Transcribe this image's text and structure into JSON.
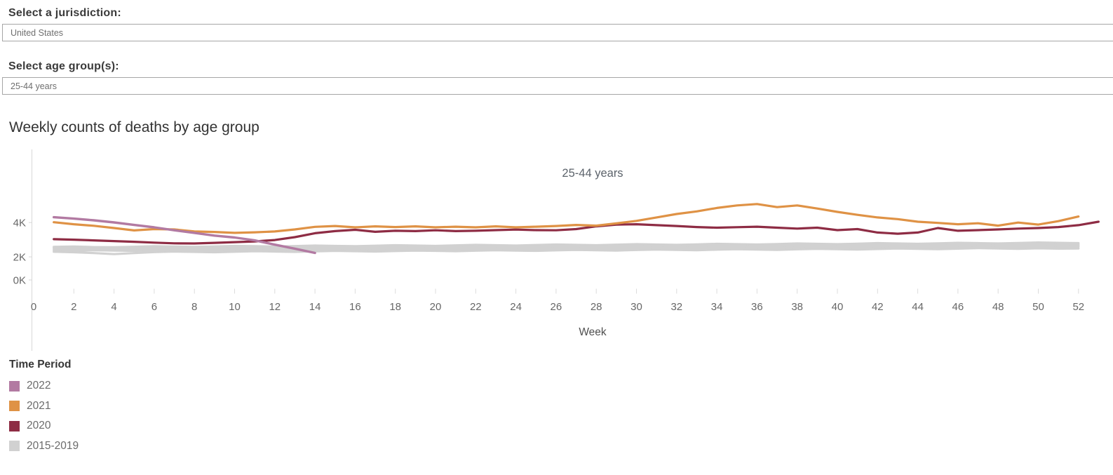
{
  "filters": {
    "jurisdiction": {
      "label": "Select a jurisdiction:",
      "value": "United States"
    },
    "age_group": {
      "label": "Select age group(s):",
      "value": "25-44 years"
    }
  },
  "chart": {
    "title": "Weekly counts of deaths by age group",
    "annotation": "25-44 years",
    "x_axis_title": "Week"
  },
  "chart_data": {
    "type": "line",
    "title": "Weekly counts of deaths by age group",
    "annotation": "25-44 years",
    "xlabel": "Week",
    "ylabel": "",
    "xlim": [
      0,
      54
    ],
    "ylim": [
      0,
      8800
    ],
    "grid": false,
    "x_axis": {
      "ticks": [
        0,
        2,
        4,
        6,
        8,
        10,
        12,
        14,
        16,
        18,
        20,
        22,
        24,
        26,
        28,
        30,
        32,
        34,
        36,
        38,
        40,
        42,
        44,
        46,
        48,
        50,
        52
      ]
    },
    "y_axis": {
      "ticks": [
        {
          "label": "0K",
          "value": 0
        },
        {
          "label": "2K",
          "value": 2000
        },
        {
          "label": "4K",
          "value": 4000
        }
      ]
    },
    "legend": {
      "title": "Time Period",
      "position": "bottom-left",
      "entries": [
        {
          "label": "2022",
          "color": "#b27aa2"
        },
        {
          "label": "2021",
          "color": "#df9245"
        },
        {
          "label": "2020",
          "color": "#8e2c44"
        },
        {
          "label": "2015-2019",
          "color": "#d1d1d1"
        }
      ]
    },
    "series": [
      {
        "name": "2015-2019",
        "color": "#d1d1d1",
        "width": 3.2,
        "start_week": 1,
        "lines": [
          [
            2300,
            2270,
            2220,
            2160,
            2220,
            2280,
            2310,
            2290,
            2270,
            2300,
            2330,
            2310,
            2290,
            2320,
            2350,
            2330,
            2310,
            2340,
            2370,
            2350,
            2330,
            2360,
            2390,
            2370,
            2350,
            2380,
            2410,
            2390,
            2370,
            2400,
            2430,
            2410,
            2390,
            2420,
            2450,
            2430,
            2410,
            2440,
            2470,
            2450,
            2430,
            2460,
            2490,
            2470,
            2450,
            2480,
            2510,
            2490,
            2470,
            2500,
            2480,
            2490
          ],
          [
            2380,
            2360,
            2390,
            2370,
            2350,
            2380,
            2410,
            2390,
            2370,
            2400,
            2430,
            2410,
            2390,
            2420,
            2450,
            2430,
            2410,
            2440,
            2470,
            2450,
            2430,
            2460,
            2490,
            2470,
            2450,
            2480,
            2510,
            2490,
            2470,
            2500,
            2530,
            2510,
            2490,
            2520,
            2550,
            2530,
            2510,
            2540,
            2570,
            2550,
            2530,
            2560,
            2590,
            2570,
            2550,
            2580,
            2610,
            2590,
            2570,
            2600,
            2580,
            2590
          ],
          [
            2450,
            2430,
            2460,
            2440,
            2420,
            2450,
            2480,
            2460,
            2440,
            2470,
            2500,
            2480,
            2460,
            2490,
            2520,
            2500,
            2480,
            2510,
            2540,
            2520,
            2500,
            2530,
            2560,
            2540,
            2520,
            2550,
            2580,
            2560,
            2540,
            2570,
            2600,
            2580,
            2560,
            2590,
            2620,
            2600,
            2580,
            2610,
            2640,
            2620,
            2600,
            2630,
            2660,
            2640,
            2620,
            2650,
            2680,
            2660,
            2640,
            2670,
            2650,
            2660
          ],
          [
            2520,
            2490,
            2510,
            2540,
            2520,
            2500,
            2530,
            2560,
            2540,
            2520,
            2550,
            2580,
            2560,
            2540,
            2570,
            2600,
            2580,
            2560,
            2590,
            2620,
            2600,
            2580,
            2610,
            2640,
            2620,
            2600,
            2630,
            2660,
            2640,
            2620,
            2650,
            2680,
            2660,
            2640,
            2670,
            2700,
            2680,
            2660,
            2690,
            2720,
            2700,
            2680,
            2710,
            2740,
            2720,
            2700,
            2730,
            2760,
            2740,
            2720,
            2750,
            2730
          ],
          [
            2580,
            2600,
            2570,
            2560,
            2590,
            2620,
            2600,
            2580,
            2610,
            2640,
            2620,
            2600,
            2630,
            2660,
            2640,
            2620,
            2650,
            2680,
            2660,
            2640,
            2670,
            2700,
            2680,
            2660,
            2690,
            2720,
            2700,
            2680,
            2710,
            2740,
            2720,
            2700,
            2730,
            2760,
            2740,
            2720,
            2750,
            2780,
            2760,
            2740,
            2770,
            2800,
            2780,
            2760,
            2790,
            2820,
            2800,
            2780,
            2810,
            2840,
            2820,
            2800
          ]
        ]
      },
      {
        "name": "2020",
        "color": "#8e2c44",
        "width": 3.2,
        "start_week": 1,
        "values": [
          3030,
          3000,
          2960,
          2920,
          2880,
          2830,
          2790,
          2780,
          2820,
          2860,
          2900,
          2980,
          3150,
          3380,
          3500,
          3580,
          3460,
          3520,
          3500,
          3550,
          3500,
          3520,
          3560,
          3590,
          3560,
          3550,
          3620,
          3780,
          3880,
          3900,
          3850,
          3800,
          3740,
          3700,
          3730,
          3760,
          3700,
          3650,
          3700,
          3560,
          3620,
          3420,
          3350,
          3420,
          3680,
          3520,
          3560,
          3600,
          3650,
          3680,
          3740,
          3850,
          4050
        ]
      },
      {
        "name": "2021",
        "color": "#df9245",
        "width": 3.2,
        "start_week": 1,
        "values": [
          4020,
          3900,
          3810,
          3680,
          3540,
          3620,
          3600,
          3480,
          3450,
          3400,
          3430,
          3480,
          3600,
          3750,
          3800,
          3720,
          3780,
          3740,
          3780,
          3720,
          3760,
          3720,
          3780,
          3720,
          3760,
          3800,
          3860,
          3820,
          3950,
          4100,
          4300,
          4500,
          4650,
          4850,
          5000,
          5080,
          4900,
          5000,
          4820,
          4620,
          4450,
          4300,
          4200,
          4050,
          3980,
          3900,
          3960,
          3820,
          4000,
          3880,
          4080,
          4350
        ]
      },
      {
        "name": "2022",
        "color": "#b27aa2",
        "width": 3.4,
        "start_week": 1,
        "values": [
          4310,
          4230,
          4130,
          4010,
          3860,
          3720,
          3550,
          3400,
          3240,
          3130,
          2960,
          2710,
          2480,
          2230
        ]
      }
    ]
  }
}
